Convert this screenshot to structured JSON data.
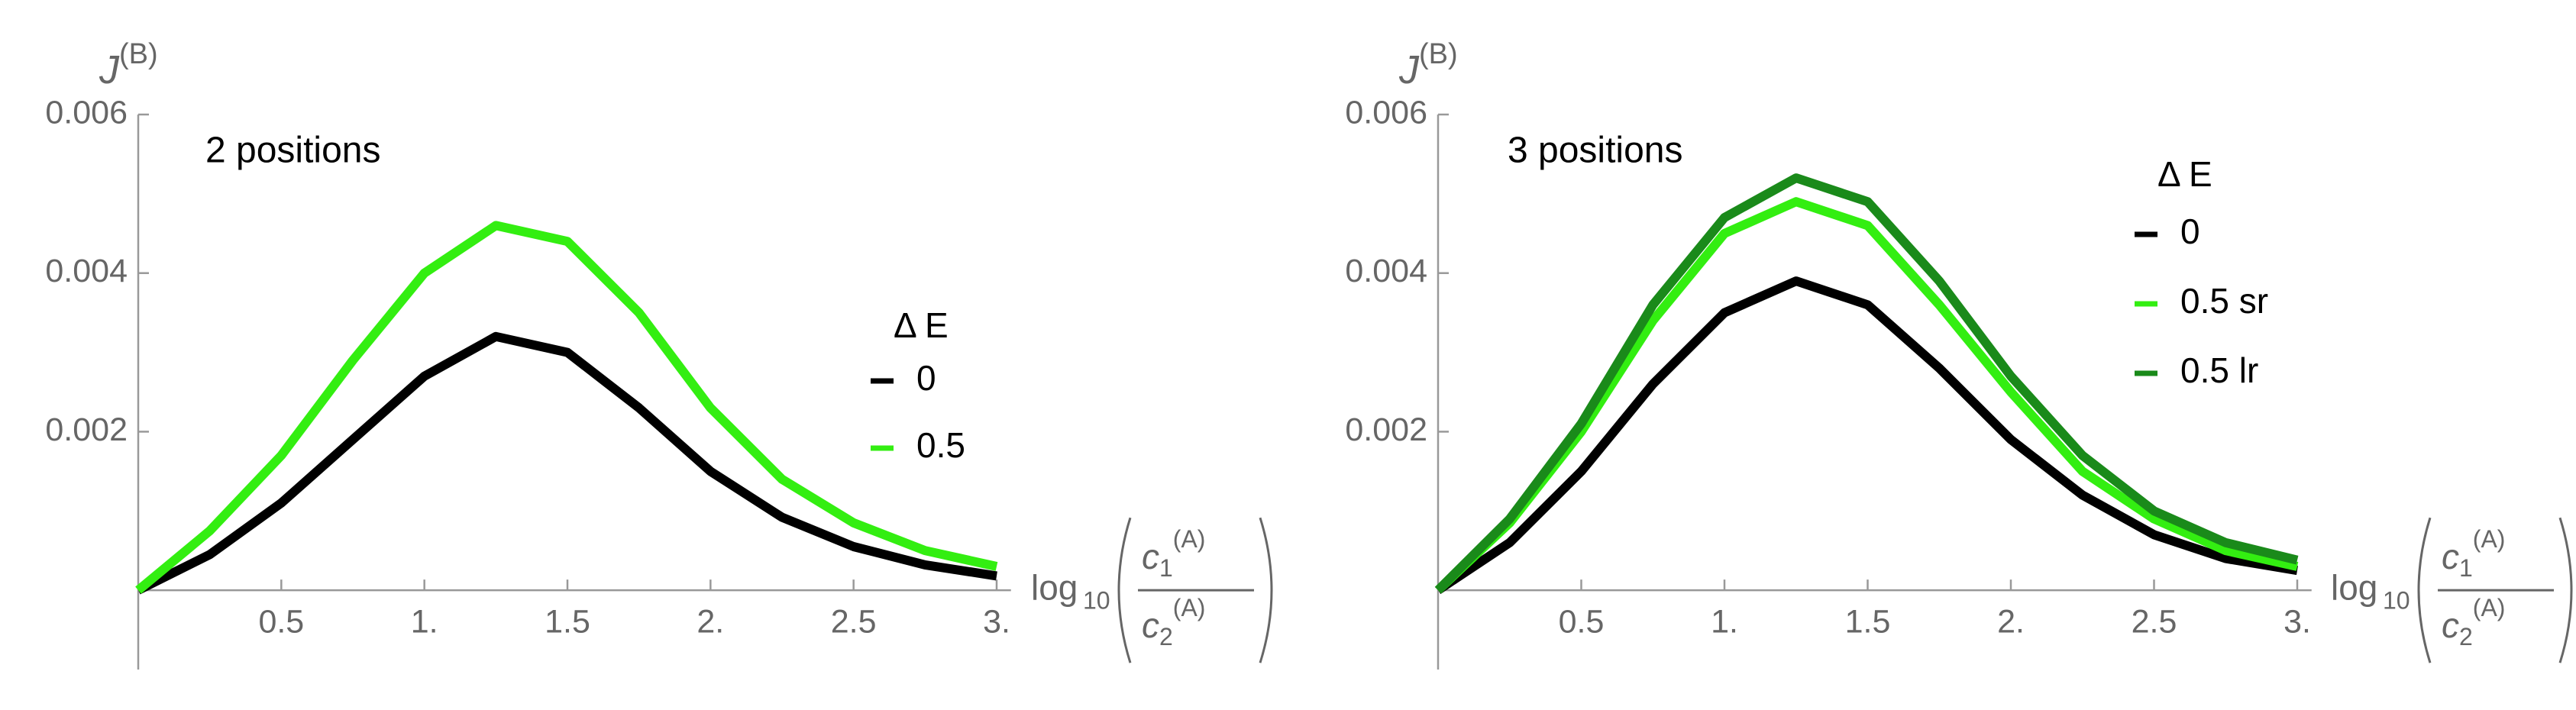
{
  "chart_data": [
    {
      "type": "line",
      "annotation": "2 positions",
      "ylabel": {
        "base": "J",
        "sup": "(B)"
      },
      "xlabel": {
        "func": "log",
        "base": "10",
        "var": "c",
        "num_sub": "1",
        "den_sub": "2",
        "sup": "(A)"
      },
      "legend_title": "Δ E",
      "x": [
        0,
        0.25,
        0.5,
        0.75,
        1.0,
        1.25,
        1.5,
        1.75,
        2.0,
        2.25,
        2.5,
        2.75,
        3.0
      ],
      "series": [
        {
          "name": "0",
          "color": "#000000",
          "values": [
            0,
            0.00045,
            0.0011,
            0.0019,
            0.0027,
            0.0032,
            0.003,
            0.0023,
            0.0015,
            0.00092,
            0.00055,
            0.00032,
            0.00018
          ]
        },
        {
          "name": "0.5",
          "color": "#33ee11",
          "values": [
            0,
            0.00075,
            0.0017,
            0.0029,
            0.004,
            0.0046,
            0.0044,
            0.0035,
            0.0023,
            0.0014,
            0.00085,
            0.0005,
            0.0003
          ]
        }
      ],
      "xlim": [
        0,
        3.05
      ],
      "ylim": [
        -0.001,
        0.006
      ],
      "xticks": [
        0.5,
        {
          "value": 1,
          "label": "1."
        },
        1.5,
        {
          "value": 2,
          "label": "2."
        },
        2.5,
        {
          "value": 3,
          "label": "3."
        }
      ],
      "yticks": [
        0.002,
        0.004,
        0.006
      ]
    },
    {
      "type": "line",
      "annotation": "3 positions",
      "ylabel": {
        "base": "J",
        "sup": "(B)"
      },
      "xlabel": {
        "func": "log",
        "base": "10",
        "var": "c",
        "num_sub": "1",
        "den_sub": "2",
        "sup": "(A)"
      },
      "legend_title": "Δ E",
      "x": [
        0,
        0.25,
        0.5,
        0.75,
        1.0,
        1.25,
        1.5,
        1.75,
        2.0,
        2.25,
        2.5,
        2.75,
        3.0
      ],
      "series": [
        {
          "name": "0",
          "color": "#000000",
          "values": [
            0,
            0.0006,
            0.0015,
            0.0026,
            0.0035,
            0.0039,
            0.0036,
            0.0028,
            0.0019,
            0.0012,
            0.0007,
            0.0004,
            0.00025
          ]
        },
        {
          "name": "0.5 sr",
          "color": "#33ee11",
          "values": [
            0,
            0.00085,
            0.002,
            0.0034,
            0.0045,
            0.0049,
            0.0046,
            0.0036,
            0.0025,
            0.0015,
            0.0009,
            0.0005,
            0.0003
          ]
        },
        {
          "name": "0.5 lr",
          "color": "#1a8a1a",
          "values": [
            0,
            0.0009,
            0.0021,
            0.0036,
            0.0047,
            0.0052,
            0.0049,
            0.0039,
            0.0027,
            0.0017,
            0.001,
            0.0006,
            0.00038
          ]
        }
      ],
      "xlim": [
        0,
        3.05
      ],
      "ylim": [
        -0.001,
        0.006
      ],
      "xticks": [
        0.5,
        {
          "value": 1,
          "label": "1."
        },
        1.5,
        {
          "value": 2,
          "label": "2."
        },
        2.5,
        {
          "value": 3,
          "label": "3."
        }
      ],
      "yticks": [
        0.002,
        0.004,
        0.006
      ]
    }
  ]
}
